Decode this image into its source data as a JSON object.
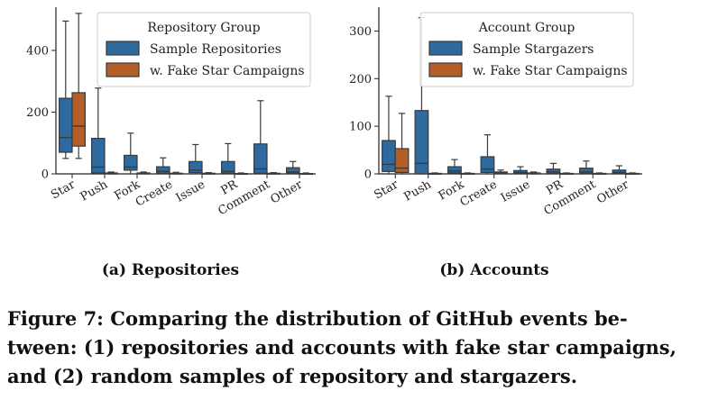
{
  "chart_data": [
    {
      "type": "box",
      "subcaption": "(a) Repositories",
      "categories": [
        "Star",
        "Push",
        "Fork",
        "Create",
        "Issue",
        "PR",
        "Comment",
        "Other"
      ],
      "ylim": [
        0,
        540
      ],
      "yticks": [
        0,
        200,
        400
      ],
      "legend": {
        "title": "Repository Group",
        "placement": "top-right"
      },
      "series": [
        {
          "name": "Sample Repositories",
          "color": "#2e6a9d",
          "boxes": [
            {
              "whislo": 50,
              "q1": 70,
              "med": 118,
              "q3": 245,
              "whishi": 495
            },
            {
              "whislo": 0,
              "q1": 3,
              "med": 22,
              "q3": 115,
              "whishi": 278
            },
            {
              "whislo": 0,
              "q1": 12,
              "med": 22,
              "q3": 60,
              "whishi": 132
            },
            {
              "whislo": 0,
              "q1": 2,
              "med": 8,
              "q3": 23,
              "whishi": 52
            },
            {
              "whislo": 0,
              "q1": 4,
              "med": 12,
              "q3": 40,
              "whishi": 95
            },
            {
              "whislo": 0,
              "q1": 2,
              "med": 8,
              "q3": 40,
              "whishi": 98
            },
            {
              "whislo": 0,
              "q1": 2,
              "med": 16,
              "q3": 97,
              "whishi": 237
            },
            {
              "whislo": 0,
              "q1": 2,
              "med": 6,
              "q3": 20,
              "whishi": 40
            }
          ]
        },
        {
          "name": "w. Fake Star Campaigns",
          "color": "#b45f27",
          "boxes": [
            {
              "whislo": 50,
              "q1": 90,
              "med": 155,
              "q3": 263,
              "whishi": 520
            },
            {
              "whislo": 0,
              "q1": 0,
              "med": 1,
              "q3": 3,
              "whishi": 6
            },
            {
              "whislo": 0,
              "q1": 0,
              "med": 1,
              "q3": 3,
              "whishi": 6
            },
            {
              "whislo": 0,
              "q1": 0,
              "med": 1,
              "q3": 2,
              "whishi": 5
            },
            {
              "whislo": 0,
              "q1": 0,
              "med": 0,
              "q3": 2,
              "whishi": 4
            },
            {
              "whislo": 0,
              "q1": 0,
              "med": 0,
              "q3": 1,
              "whishi": 3
            },
            {
              "whislo": 0,
              "q1": 0,
              "med": 0,
              "q3": 2,
              "whishi": 4
            },
            {
              "whislo": 0,
              "q1": 0,
              "med": 0,
              "q3": 1,
              "whishi": 3
            }
          ]
        }
      ]
    },
    {
      "type": "box",
      "subcaption": "(b) Accounts",
      "categories": [
        "Star",
        "Push",
        "Fork",
        "Create",
        "Issue",
        "PR",
        "Comment",
        "Other"
      ],
      "ylim": [
        0,
        350
      ],
      "yticks": [
        0,
        100,
        200,
        300
      ],
      "legend": {
        "title": "Account Group",
        "placement": "top-right"
      },
      "series": [
        {
          "name": "Sample Stargazers",
          "color": "#2e6a9d",
          "boxes": [
            {
              "whislo": 0,
              "q1": 5,
              "med": 20,
              "q3": 70,
              "whishi": 163
            },
            {
              "whislo": 0,
              "q1": 0,
              "med": 22,
              "q3": 133,
              "whishi": 328
            },
            {
              "whislo": 0,
              "q1": 2,
              "med": 6,
              "q3": 15,
              "whishi": 30
            },
            {
              "whislo": 0,
              "q1": 3,
              "med": 10,
              "q3": 36,
              "whishi": 82
            },
            {
              "whislo": 0,
              "q1": 1,
              "med": 3,
              "q3": 7,
              "whishi": 15
            },
            {
              "whislo": 0,
              "q1": 1,
              "med": 4,
              "q3": 10,
              "whishi": 22
            },
            {
              "whislo": 0,
              "q1": 1,
              "med": 4,
              "q3": 12,
              "whishi": 27
            },
            {
              "whislo": 0,
              "q1": 1,
              "med": 3,
              "q3": 8,
              "whishi": 17
            }
          ]
        },
        {
          "name": "w. Fake Star Campaigns",
          "color": "#b45f27",
          "boxes": [
            {
              "whislo": 0,
              "q1": 3,
              "med": 12,
              "q3": 53,
              "whishi": 127
            },
            {
              "whislo": 0,
              "q1": 0,
              "med": 0,
              "q3": 1,
              "whishi": 2
            },
            {
              "whislo": 0,
              "q1": 0,
              "med": 0,
              "q3": 1,
              "whishi": 2
            },
            {
              "whislo": 0,
              "q1": 1,
              "med": 2,
              "q3": 4,
              "whishi": 8
            },
            {
              "whislo": 0,
              "q1": 0,
              "med": 1,
              "q3": 2,
              "whishi": 4
            },
            {
              "whislo": 0,
              "q1": 0,
              "med": 0,
              "q3": 1,
              "whishi": 2
            },
            {
              "whislo": 0,
              "q1": 0,
              "med": 0,
              "q3": 1,
              "whishi": 2
            },
            {
              "whislo": 0,
              "q1": 0,
              "med": 0,
              "q3": 1,
              "whishi": 2
            }
          ]
        }
      ]
    }
  ],
  "caption": "Figure 7: Comparing the distribution of GitHub events be-\ntween: (1) repositories and accounts with fake star campaigns,\nand (2) random samples of repository and stargazers."
}
